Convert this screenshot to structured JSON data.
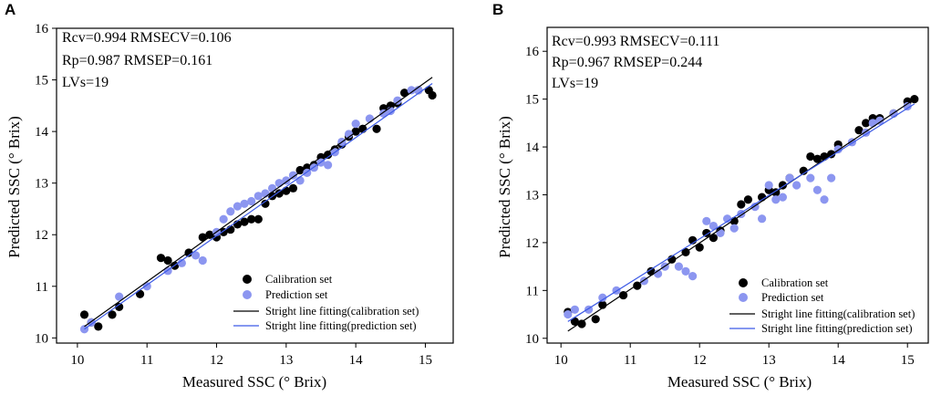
{
  "chart_data": [
    {
      "panel": "A",
      "type": "scatter",
      "xlabel": "Measured SSC (° Brix)",
      "ylabel": "Predicted SSC (° Brix)",
      "xlim": [
        9.7,
        15.4
      ],
      "ylim": [
        9.9,
        16
      ],
      "xticks": [
        10,
        11,
        12,
        13,
        14,
        15
      ],
      "yticks": [
        10,
        11,
        12,
        13,
        14,
        15,
        16
      ],
      "stats": [
        "Rcv=0.994  RMSECV=0.106",
        "Rp=0.987   RMSEP=0.161",
        "LVs=19"
      ],
      "legend": [
        "Calibration set",
        "Prediction set",
        "Stright line fitting(calibration set)",
        "Stright line fitting(prediction set)"
      ],
      "colors": {
        "calibration": "#000000",
        "prediction": "#8c96f0",
        "cal_line": "#000000",
        "pred_line": "#3c5ae6"
      },
      "lines": {
        "calibration": {
          "x": [
            10.1,
            15.1
          ],
          "y": [
            10.22,
            15.05
          ]
        },
        "prediction": {
          "x": [
            10.1,
            15.1
          ],
          "y": [
            10.17,
            14.93
          ]
        }
      },
      "series": [
        {
          "name": "Calibration set",
          "points": [
            [
              10.1,
              10.45
            ],
            [
              10.2,
              10.3
            ],
            [
              10.3,
              10.22
            ],
            [
              10.5,
              10.45
            ],
            [
              10.6,
              10.6
            ],
            [
              10.9,
              10.85
            ],
            [
              11.2,
              11.55
            ],
            [
              11.3,
              11.5
            ],
            [
              11.4,
              11.4
            ],
            [
              11.6,
              11.65
            ],
            [
              11.8,
              11.95
            ],
            [
              11.9,
              12.0
            ],
            [
              12.0,
              11.95
            ],
            [
              12.1,
              12.05
            ],
            [
              12.2,
              12.1
            ],
            [
              12.3,
              12.2
            ],
            [
              12.4,
              12.25
            ],
            [
              12.5,
              12.3
            ],
            [
              12.6,
              12.3
            ],
            [
              12.7,
              12.6
            ],
            [
              12.8,
              12.75
            ],
            [
              12.9,
              12.8
            ],
            [
              13.0,
              12.85
            ],
            [
              13.1,
              12.9
            ],
            [
              13.2,
              13.25
            ],
            [
              13.3,
              13.3
            ],
            [
              13.4,
              13.35
            ],
            [
              13.5,
              13.5
            ],
            [
              13.6,
              13.55
            ],
            [
              13.7,
              13.65
            ],
            [
              13.8,
              13.75
            ],
            [
              13.9,
              13.9
            ],
            [
              14.0,
              14.0
            ],
            [
              14.1,
              14.05
            ],
            [
              14.3,
              14.05
            ],
            [
              14.4,
              14.45
            ],
            [
              14.5,
              14.5
            ],
            [
              14.6,
              14.55
            ],
            [
              14.7,
              14.75
            ],
            [
              14.9,
              14.8
            ],
            [
              15.1,
              14.7
            ],
            [
              15.05,
              14.8
            ]
          ]
        },
        {
          "name": "Prediction set",
          "points": [
            [
              10.1,
              10.17
            ],
            [
              10.2,
              10.3
            ],
            [
              10.6,
              10.8
            ],
            [
              11.0,
              11.0
            ],
            [
              11.3,
              11.3
            ],
            [
              11.5,
              11.45
            ],
            [
              11.7,
              11.6
            ],
            [
              11.8,
              11.5
            ],
            [
              12.0,
              12.05
            ],
            [
              12.1,
              12.3
            ],
            [
              12.2,
              12.45
            ],
            [
              12.3,
              12.55
            ],
            [
              12.4,
              12.6
            ],
            [
              12.5,
              12.65
            ],
            [
              12.6,
              12.75
            ],
            [
              12.7,
              12.8
            ],
            [
              12.8,
              12.9
            ],
            [
              12.9,
              13.0
            ],
            [
              13.0,
              13.05
            ],
            [
              13.1,
              13.15
            ],
            [
              13.2,
              13.05
            ],
            [
              13.3,
              13.2
            ],
            [
              13.4,
              13.3
            ],
            [
              13.5,
              13.4
            ],
            [
              13.6,
              13.35
            ],
            [
              13.7,
              13.6
            ],
            [
              13.8,
              13.8
            ],
            [
              13.9,
              13.95
            ],
            [
              14.0,
              14.15
            ],
            [
              14.2,
              14.25
            ],
            [
              14.4,
              14.35
            ],
            [
              14.5,
              14.4
            ],
            [
              14.6,
              14.6
            ],
            [
              14.8,
              14.8
            ],
            [
              14.9,
              14.8
            ]
          ]
        }
      ]
    },
    {
      "panel": "B",
      "type": "scatter",
      "xlabel": "Measured SSC (° Brix)",
      "ylabel": "Predicted SSC (° Brix)",
      "xlim": [
        9.8,
        15.3
      ],
      "ylim": [
        9.9,
        16.5
      ],
      "xticks": [
        10,
        11,
        12,
        13,
        14,
        15
      ],
      "yticks": [
        10,
        11,
        12,
        13,
        14,
        15,
        16
      ],
      "stats": [
        "Rcv=0.993  RMSECV=0.111",
        "Rp=0.967   RMSEP=0.244",
        "LVs=19"
      ],
      "legend": [
        "Calibration set",
        "Prediction set",
        "Stright line fitting(calibration set)",
        "Stright line fitting(prediction set)"
      ],
      "colors": {
        "calibration": "#000000",
        "prediction": "#8c96f0",
        "cal_line": "#000000",
        "pred_line": "#3c5ae6"
      },
      "lines": {
        "calibration": {
          "x": [
            10.1,
            15.1
          ],
          "y": [
            10.15,
            15.0
          ]
        },
        "prediction": {
          "x": [
            10.1,
            15.1
          ],
          "y": [
            10.35,
            14.9
          ]
        }
      },
      "series": [
        {
          "name": "Calibration set",
          "points": [
            [
              10.1,
              10.55
            ],
            [
              10.2,
              10.35
            ],
            [
              10.3,
              10.3
            ],
            [
              10.5,
              10.4
            ],
            [
              10.6,
              10.7
            ],
            [
              10.9,
              10.9
            ],
            [
              11.1,
              11.1
            ],
            [
              11.3,
              11.4
            ],
            [
              11.6,
              11.65
            ],
            [
              11.8,
              11.8
            ],
            [
              11.9,
              12.05
            ],
            [
              12.0,
              11.9
            ],
            [
              12.1,
              12.2
            ],
            [
              12.2,
              12.1
            ],
            [
              12.3,
              12.25
            ],
            [
              12.5,
              12.45
            ],
            [
              12.6,
              12.8
            ],
            [
              12.7,
              12.9
            ],
            [
              12.9,
              12.95
            ],
            [
              13.0,
              13.1
            ],
            [
              13.1,
              13.05
            ],
            [
              13.2,
              13.2
            ],
            [
              13.3,
              13.35
            ],
            [
              13.5,
              13.5
            ],
            [
              13.6,
              13.8
            ],
            [
              13.7,
              13.75
            ],
            [
              13.8,
              13.8
            ],
            [
              13.9,
              13.85
            ],
            [
              14.0,
              14.05
            ],
            [
              14.3,
              14.35
            ],
            [
              14.4,
              14.5
            ],
            [
              14.5,
              14.6
            ],
            [
              14.6,
              14.6
            ],
            [
              14.8,
              14.7
            ],
            [
              15.1,
              15.0
            ],
            [
              15.0,
              14.95
            ]
          ]
        },
        {
          "name": "Prediction set",
          "points": [
            [
              10.1,
              10.5
            ],
            [
              10.2,
              10.6
            ],
            [
              10.4,
              10.6
            ],
            [
              10.6,
              10.85
            ],
            [
              10.8,
              11.0
            ],
            [
              11.2,
              11.2
            ],
            [
              11.4,
              11.35
            ],
            [
              11.5,
              11.5
            ],
            [
              11.7,
              11.5
            ],
            [
              11.8,
              11.4
            ],
            [
              11.9,
              11.3
            ],
            [
              12.1,
              12.45
            ],
            [
              12.2,
              12.35
            ],
            [
              12.3,
              12.2
            ],
            [
              12.4,
              12.5
            ],
            [
              12.5,
              12.3
            ],
            [
              12.6,
              12.6
            ],
            [
              12.8,
              12.75
            ],
            [
              12.9,
              12.5
            ],
            [
              13.0,
              13.2
            ],
            [
              13.1,
              12.9
            ],
            [
              13.2,
              12.95
            ],
            [
              13.3,
              13.35
            ],
            [
              13.4,
              13.2
            ],
            [
              13.6,
              13.35
            ],
            [
              13.7,
              13.1
            ],
            [
              13.8,
              12.9
            ],
            [
              13.9,
              13.35
            ],
            [
              14.0,
              13.95
            ],
            [
              14.2,
              14.1
            ],
            [
              14.4,
              14.3
            ],
            [
              14.5,
              14.5
            ],
            [
              14.6,
              14.55
            ],
            [
              14.8,
              14.7
            ],
            [
              15.0,
              14.85
            ]
          ]
        }
      ]
    }
  ]
}
